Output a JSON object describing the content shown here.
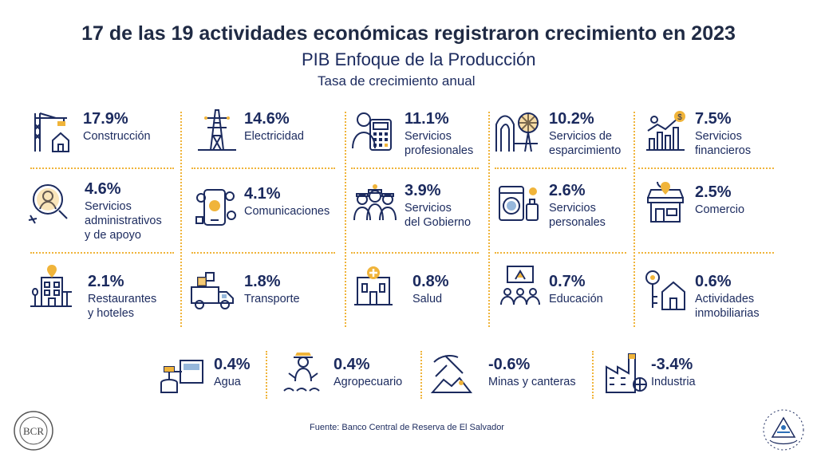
{
  "header": {
    "title": "17 de las 19 actividades económicas registraron crecimiento en 2023",
    "subtitle": "PIB Enfoque de la Producción",
    "caption": "Tasa de crecimiento anual"
  },
  "colors": {
    "navy": "#1b2a5e",
    "accent": "#f0b43a",
    "blue": "#2d6fb7"
  },
  "items": [
    {
      "pct": "17.9%",
      "label": "Construcción",
      "icon": "construction-crane-house-icon"
    },
    {
      "pct": "14.6%",
      "label": "Electricidad",
      "icon": "power-tower-icon"
    },
    {
      "pct": "11.1%",
      "label": "Servicios\nprofesionales",
      "icon": "professional-calculator-icon"
    },
    {
      "pct": "10.2%",
      "label": "Servicios de\nesparcimiento",
      "icon": "amusement-park-icon"
    },
    {
      "pct": "7.5%",
      "label": "Servicios\nfinancieros",
      "icon": "financial-chart-icon"
    },
    {
      "pct": "4.6%",
      "label": "Servicios\nadministrativos\ny de apoyo",
      "icon": "admin-support-icon"
    },
    {
      "pct": "4.1%",
      "label": "Comunicaciones",
      "icon": "smartphone-share-icon"
    },
    {
      "pct": "3.9%",
      "label": "Servicios\ndel Gobierno",
      "icon": "government-officers-icon"
    },
    {
      "pct": "2.6%",
      "label": "Servicios\npersonales",
      "icon": "washing-machine-icon"
    },
    {
      "pct": "2.5%",
      "label": "Comercio",
      "icon": "store-icon"
    },
    {
      "pct": "2.1%",
      "label": "Restaurantes\ny hoteles",
      "icon": "hotel-building-icon"
    },
    {
      "pct": "1.8%",
      "label": "Transporte",
      "icon": "delivery-truck-icon"
    },
    {
      "pct": "0.8%",
      "label": "Salud",
      "icon": "hospital-icon"
    },
    {
      "pct": "0.7%",
      "label": "Educación",
      "icon": "classroom-icon"
    },
    {
      "pct": "0.6%",
      "label": "Actividades\ninmobiliarias",
      "icon": "house-key-icon"
    },
    {
      "pct": "0.4%",
      "label": "Agua",
      "icon": "water-plant-icon"
    },
    {
      "pct": "0.4%",
      "label": "Agropecuario",
      "icon": "farmer-icon"
    },
    {
      "pct": "-0.6%",
      "label": "Minas y canteras",
      "icon": "pickaxe-icon"
    },
    {
      "pct": "-3.4%",
      "label": "Industria",
      "icon": "factory-icon"
    }
  ],
  "footer": {
    "source": "Fuente: Banco Central de Reserva de El Salvador",
    "seal_left_text": "BCR"
  }
}
